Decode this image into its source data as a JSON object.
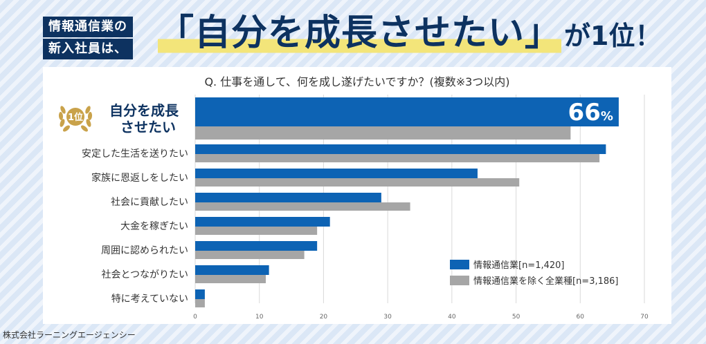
{
  "header": {
    "tag_line1": "情報通信業の",
    "tag_line2": "新入社員は、",
    "headline_main": "「自分を成長させたい」",
    "headline_suffix": "が1位！"
  },
  "highlight": {
    "rank_badge": "1位",
    "value_label_number": "66",
    "value_label_unit": "%"
  },
  "footer": {
    "credit": "株式会社ラーニングエージェンシー"
  },
  "colors": {
    "series1": "#0d63b4",
    "series2": "#a6a6a6",
    "navy": "#0d3260",
    "highlight_yellow": "#f3e57a",
    "gold": "#c9a24a"
  },
  "chart_data": {
    "type": "bar",
    "orientation": "horizontal",
    "title": "Q. 仕事を通して、何を成し遂げたいですか？(複数※3つ以内)",
    "categories": [
      "自分を成長させたい",
      "安定した生活を送りたい",
      "家族に恩返しをしたい",
      "社会に貢献したい",
      "大金を稼ぎたい",
      "周囲に認められたい",
      "社会とつながりたい",
      "特に考えていない"
    ],
    "series": [
      {
        "name": "情報通信業[n=1,420]",
        "values": [
          66,
          64,
          44,
          29,
          21,
          19,
          11.5,
          1.5
        ]
      },
      {
        "name": "情報通信業を除く全業種[n=3,186]",
        "values": [
          58.5,
          63,
          50.5,
          33.5,
          19,
          17,
          11,
          1.5
        ]
      }
    ],
    "xlim": [
      0,
      70
    ],
    "xticks": [
      "0",
      "10",
      "20",
      "30",
      "40",
      "50",
      "60",
      "70"
    ],
    "grid": true,
    "legend": "bottom-right"
  }
}
